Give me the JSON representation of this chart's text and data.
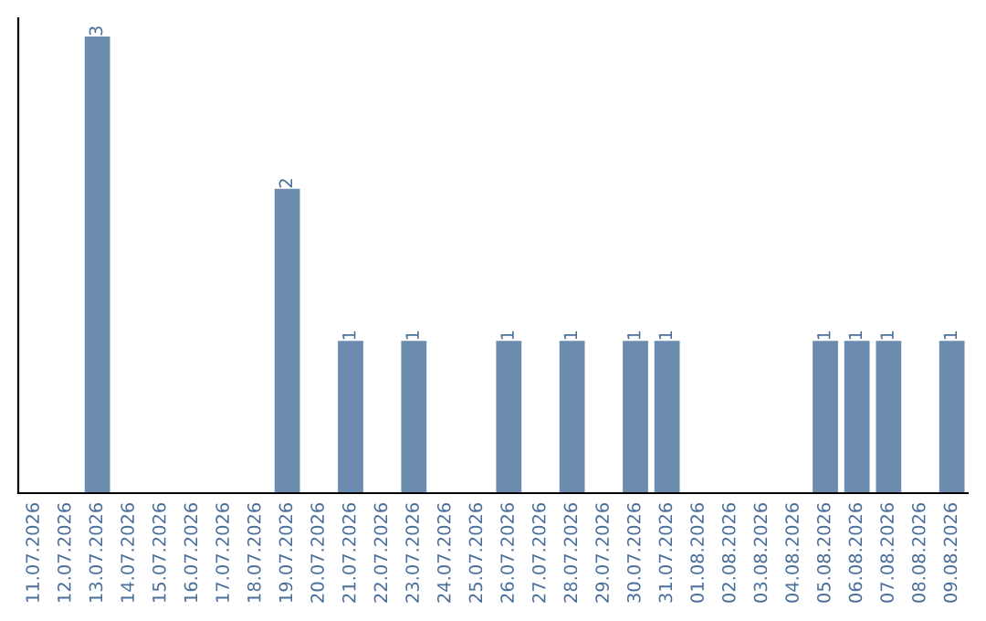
{
  "chart_data": {
    "type": "bar",
    "categories": [
      "11.07.2026",
      "12.07.2026",
      "13.07.2026",
      "14.07.2026",
      "15.07.2026",
      "16.07.2026",
      "17.07.2026",
      "18.07.2026",
      "19.07.2026",
      "20.07.2026",
      "21.07.2026",
      "22.07.2026",
      "23.07.2026",
      "24.07.2026",
      "25.07.2026",
      "26.07.2026",
      "27.07.2026",
      "28.07.2026",
      "29.07.2026",
      "30.07.2026",
      "31.07.2026",
      "01.08.2026",
      "02.08.2026",
      "03.08.2026",
      "04.08.2026",
      "05.08.2026",
      "06.08.2026",
      "07.08.2026",
      "08.08.2026",
      "09.08.2026"
    ],
    "values": [
      0,
      0,
      3,
      0,
      0,
      0,
      0,
      0,
      2,
      0,
      1,
      0,
      1,
      0,
      0,
      1,
      0,
      1,
      0,
      1,
      1,
      0,
      0,
      0,
      0,
      1,
      1,
      1,
      0,
      1
    ],
    "value_labels": [
      null,
      null,
      "3",
      null,
      null,
      null,
      null,
      null,
      "2",
      null,
      "1",
      null,
      "1",
      null,
      null,
      "1",
      null,
      "1",
      null,
      "1",
      "1",
      null,
      null,
      null,
      null,
      "1",
      "1",
      "1",
      null,
      "1"
    ],
    "color": "#6b8cae",
    "tick_labels": "x",
    "grid": false,
    "legend": false
  }
}
